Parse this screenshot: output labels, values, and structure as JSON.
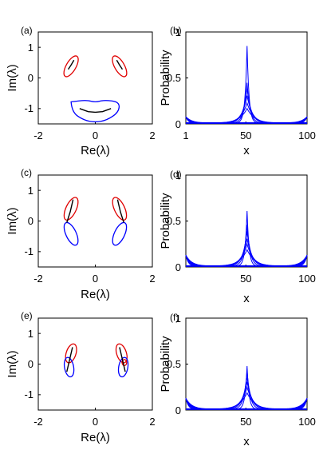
{
  "figure": {
    "panels": [
      "(a)",
      "(b)",
      "(c)",
      "(d)",
      "(e)",
      "(f)"
    ],
    "left_xlabel": "Re(λ)",
    "left_ylabel": "Im(λ)",
    "right_xlabel": "x",
    "right_ylabel": "Probability"
  },
  "colors": {
    "red": "#e00000",
    "black": "#000000",
    "blue": "#0000ff"
  },
  "chart_data": [
    {
      "type": "line",
      "panel": "(a)",
      "xlabel": "Re(λ)",
      "ylabel": "Im(λ)",
      "xlim": [
        -2,
        2
      ],
      "ylim": [
        -1.5,
        1.5
      ],
      "xticks": [
        -2,
        0,
        2
      ],
      "yticks": [
        -1,
        0,
        1
      ],
      "series": [
        {
          "color": "red",
          "shape": "lobe",
          "center": [
            -0.85,
            0.38
          ],
          "rx": 0.17,
          "ry": 0.38,
          "rotation_deg": 30
        },
        {
          "color": "red",
          "shape": "lobe",
          "center": [
            0.85,
            0.38
          ],
          "rx": 0.17,
          "ry": 0.38,
          "rotation_deg": -30
        },
        {
          "color": "black",
          "shape": "arc",
          "points": [
            [
              -0.95,
              0.28
            ],
            [
              -0.85,
              0.42
            ],
            [
              -0.75,
              0.58
            ]
          ]
        },
        {
          "color": "black",
          "shape": "arc",
          "points": [
            [
              0.95,
              0.28
            ],
            [
              0.85,
              0.42
            ],
            [
              0.75,
              0.58
            ]
          ]
        },
        {
          "color": "blue",
          "shape": "kidney",
          "points": [
            [
              -0.85,
              -0.78
            ],
            [
              -0.3,
              -0.72
            ],
            [
              0,
              -0.8
            ],
            [
              0.3,
              -0.72
            ],
            [
              0.85,
              -0.78
            ],
            [
              0.82,
              -1.12
            ],
            [
              0.4,
              -1.38
            ],
            [
              0,
              -1.45
            ],
            [
              -0.4,
              -1.38
            ],
            [
              -0.82,
              -1.12
            ]
          ]
        },
        {
          "color": "black",
          "shape": "arc",
          "points": [
            [
              -0.55,
              -1.0
            ],
            [
              -0.25,
              -1.1
            ],
            [
              0,
              -1.12
            ],
            [
              0.25,
              -1.1
            ],
            [
              0.55,
              -1.0
            ]
          ]
        }
      ]
    },
    {
      "type": "area",
      "panel": "(b)",
      "xlabel": "x",
      "ylabel": "Probability",
      "xlim": [
        1,
        100
      ],
      "ylim": [
        0,
        1
      ],
      "xticks": [
        1,
        50,
        100
      ],
      "yticks": [
        0,
        0.5,
        1
      ],
      "peaks": [
        0.84,
        0.44,
        0.38,
        0.3,
        0.22,
        0.16
      ],
      "peak_position": 51,
      "edge_height": 0.07
    },
    {
      "type": "line",
      "panel": "(c)",
      "xlabel": "Re(λ)",
      "ylabel": "Im(λ)",
      "xlim": [
        -2,
        2
      ],
      "ylim": [
        -1.5,
        1.5
      ],
      "xticks": [
        -2,
        0,
        2
      ],
      "yticks": [
        -1,
        0,
        1
      ],
      "series": [
        {
          "color": "red",
          "shape": "lobe",
          "center": [
            -0.85,
            0.4
          ],
          "rx": 0.18,
          "ry": 0.4,
          "rotation_deg": 25
        },
        {
          "color": "red",
          "shape": "lobe",
          "center": [
            0.85,
            0.4
          ],
          "rx": 0.18,
          "ry": 0.4,
          "rotation_deg": -25
        },
        {
          "color": "blue",
          "shape": "lobe",
          "center": [
            -0.85,
            -0.42
          ],
          "rx": 0.18,
          "ry": 0.4,
          "rotation_deg": -25
        },
        {
          "color": "blue",
          "shape": "lobe",
          "center": [
            0.85,
            -0.42
          ],
          "rx": 0.18,
          "ry": 0.4,
          "rotation_deg": 25
        },
        {
          "color": "black",
          "shape": "arc",
          "points": [
            [
              -1.0,
              -0.05
            ],
            [
              -0.88,
              0.3
            ],
            [
              -0.78,
              0.7
            ]
          ]
        },
        {
          "color": "black",
          "shape": "arc",
          "points": [
            [
              1.0,
              -0.05
            ],
            [
              0.88,
              0.3
            ],
            [
              0.78,
              0.7
            ]
          ]
        }
      ]
    },
    {
      "type": "area",
      "panel": "(d)",
      "xlabel": "x",
      "ylabel": "Probability",
      "xlim": [
        1,
        100
      ],
      "ylim": [
        0,
        1
      ],
      "xticks": [
        50,
        100
      ],
      "yticks": [
        0,
        0.5,
        1
      ],
      "peaks": [
        0.6,
        0.45,
        0.38,
        0.3,
        0.24,
        0.18
      ],
      "peak_position": 51,
      "edge_height": 0.12
    },
    {
      "type": "line",
      "panel": "(e)",
      "xlabel": "Re(λ)",
      "ylabel": "Im(λ)",
      "xlim": [
        -2,
        2
      ],
      "ylim": [
        -1.5,
        1.5
      ],
      "xticks": [
        -2,
        0,
        2
      ],
      "yticks": [
        -1,
        0,
        1
      ],
      "series": [
        {
          "color": "red",
          "shape": "lobe",
          "center": [
            -0.85,
            0.35
          ],
          "rx": 0.17,
          "ry": 0.32,
          "rotation_deg": 18
        },
        {
          "color": "red",
          "shape": "lobe",
          "center": [
            0.92,
            0.35
          ],
          "rx": 0.17,
          "ry": 0.32,
          "rotation_deg": -18
        },
        {
          "color": "blue",
          "shape": "lobe",
          "center": [
            -0.92,
            -0.1
          ],
          "rx": 0.16,
          "ry": 0.32,
          "rotation_deg": -10
        },
        {
          "color": "blue",
          "shape": "lobe",
          "center": [
            0.98,
            -0.1
          ],
          "rx": 0.16,
          "ry": 0.32,
          "rotation_deg": 10
        },
        {
          "color": "red",
          "shape": "lobe",
          "center": [
            1.02,
            0.05
          ],
          "rx": 0.08,
          "ry": 0.1,
          "rotation_deg": 0
        },
        {
          "color": "black",
          "shape": "arc",
          "points": [
            [
              -1.0,
              -0.25
            ],
            [
              -0.9,
              0.15
            ],
            [
              -0.8,
              0.55
            ]
          ]
        },
        {
          "color": "black",
          "shape": "arc",
          "points": [
            [
              1.05,
              -0.25
            ],
            [
              0.95,
              0.15
            ],
            [
              0.85,
              0.55
            ]
          ]
        }
      ]
    },
    {
      "type": "area",
      "panel": "(f)",
      "xlabel": "x",
      "ylabel": "Probability",
      "xlim": [
        1,
        100
      ],
      "ylim": [
        0,
        1
      ],
      "xticks": [
        50,
        100
      ],
      "yticks": [
        0,
        0.5,
        1
      ],
      "peaks": [
        0.47,
        0.42,
        0.36,
        0.3,
        0.24,
        0.18
      ],
      "peak_position": 51,
      "edge_height": 0.12
    }
  ]
}
